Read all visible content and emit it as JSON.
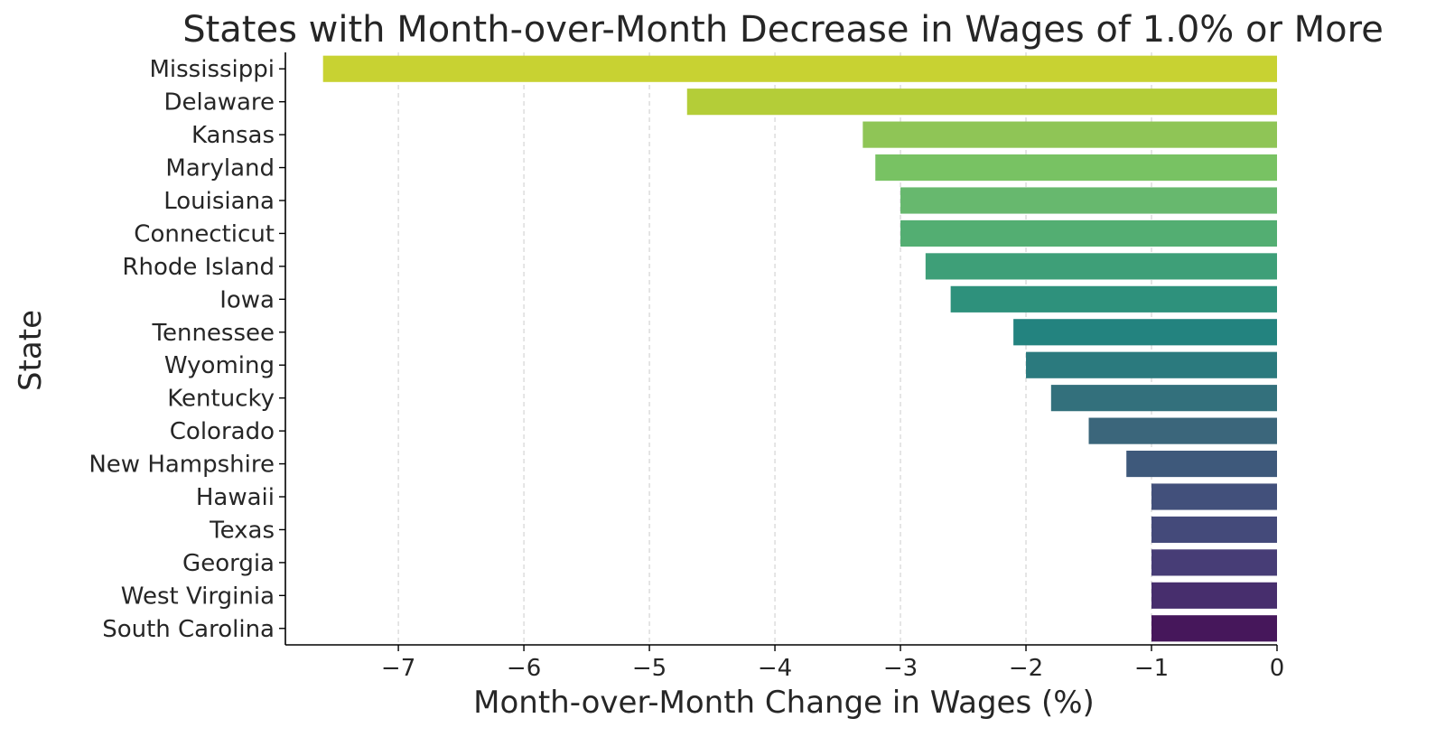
{
  "chart_data": {
    "type": "bar",
    "orientation": "horizontal",
    "title": "States with Month-over-Month Decrease in Wages of 1.0% or More",
    "xlabel": "Month-over-Month Change in Wages (%)",
    "ylabel": "State",
    "xlim": [
      -7.9,
      0
    ],
    "xticks": [
      -7,
      -6,
      -5,
      -4,
      -3,
      -2,
      -1,
      0
    ],
    "xtick_labels": [
      "−7",
      "−6",
      "−5",
      "−4",
      "−3",
      "−2",
      "−1",
      "0"
    ],
    "grid": "x-dashed",
    "categories": [
      "Mississippi",
      "Delaware",
      "Kansas",
      "Maryland",
      "Louisiana",
      "Connecticut",
      "Rhode Island",
      "Iowa",
      "Tennessee",
      "Wyoming",
      "Kentucky",
      "Colorado",
      "New Hampshire",
      "Hawaii",
      "Texas",
      "Georgia",
      "West Virginia",
      "South Carolina"
    ],
    "values": [
      -7.6,
      -4.7,
      -3.3,
      -3.2,
      -3.0,
      -3.0,
      -2.8,
      -2.6,
      -2.1,
      -2.0,
      -1.8,
      -1.5,
      -1.2,
      -1.0,
      -1.0,
      -1.0,
      -1.0,
      -1.0
    ],
    "colors": [
      "#c8d232",
      "#b4cd38",
      "#8fc556",
      "#78c263",
      "#67b86e",
      "#53ae72",
      "#3e9f78",
      "#2e917c",
      "#23837f",
      "#2b7a7e",
      "#33707c",
      "#3b667b",
      "#3e597b",
      "#42507b",
      "#444a7a",
      "#473d76",
      "#472e6d",
      "#46175b"
    ]
  }
}
